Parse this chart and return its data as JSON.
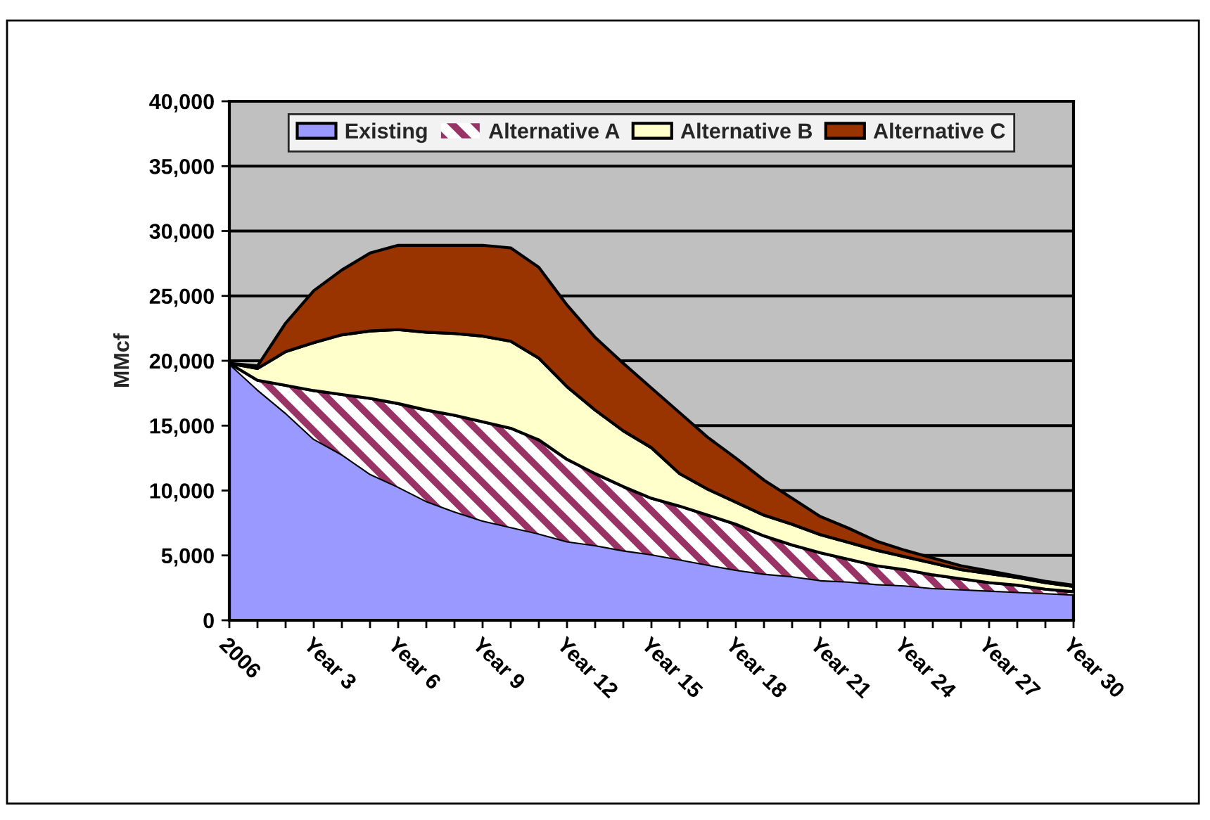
{
  "chart_data": {
    "type": "area",
    "stacked": true,
    "ylabel": "MMcf",
    "categories": [
      "2006",
      null,
      null,
      "Year 3",
      null,
      null,
      "Year 6",
      null,
      null,
      "Year 9",
      null,
      null,
      "Year 12",
      null,
      null,
      "Year 15",
      null,
      null,
      "Year 18",
      null,
      null,
      "Year 21",
      null,
      null,
      "Year 24",
      null,
      null,
      "Year 27",
      null,
      null,
      "Year 30"
    ],
    "series": [
      {
        "name": "Existing",
        "color": "#9999ff",
        "values": [
          19800,
          17800,
          16000,
          14000,
          12800,
          11300,
          10300,
          9200,
          8400,
          7700,
          7200,
          6700,
          6100,
          5800,
          5400,
          5100,
          4700,
          4300,
          3900,
          3600,
          3400,
          3100,
          3000,
          2800,
          2700,
          2500,
          2400,
          2300,
          2200,
          2100,
          2000
        ]
      },
      {
        "name": "Alternative A",
        "color": "#993366",
        "values": [
          0,
          700,
          2100,
          3700,
          4600,
          5800,
          6400,
          7000,
          7400,
          7600,
          7600,
          7200,
          6300,
          5500,
          4900,
          4300,
          4100,
          3800,
          3500,
          2900,
          2400,
          2100,
          1700,
          1400,
          1200,
          1000,
          800,
          600,
          500,
          300,
          200
        ]
      },
      {
        "name": "Alternative B",
        "color": "#ffffcc",
        "values": [
          0,
          900,
          2600,
          3700,
          4600,
          5200,
          5700,
          6000,
          6300,
          6600,
          6700,
          6300,
          5600,
          4900,
          4300,
          3900,
          2500,
          2000,
          1700,
          1600,
          1600,
          1400,
          1300,
          1200,
          1000,
          900,
          700,
          700,
          600,
          500,
          400
        ]
      },
      {
        "name": "Alternative C",
        "color": "#993300",
        "values": [
          0,
          200,
          2200,
          4000,
          5000,
          6000,
          6500,
          6700,
          6800,
          7000,
          7200,
          7000,
          6300,
          5600,
          5200,
          4600,
          4700,
          4000,
          3400,
          2700,
          2000,
          1400,
          1100,
          700,
          500,
          400,
          300,
          200,
          100,
          100,
          100
        ]
      }
    ],
    "ylim": [
      0,
      40000
    ],
    "yticks": [
      0,
      {
        "value": 5000,
        "label": "5,000"
      },
      {
        "value": 10000,
        "label": "10,000"
      },
      {
        "value": 15000,
        "label": "15,000"
      },
      {
        "value": 20000,
        "label": "20,000"
      },
      {
        "value": 25000,
        "label": "25,000"
      },
      {
        "value": 30000,
        "label": "30,000"
      },
      {
        "value": 35000,
        "label": "35,000"
      },
      {
        "value": 40000,
        "label": "40,000"
      }
    ],
    "grid": "y",
    "legend": "top"
  }
}
